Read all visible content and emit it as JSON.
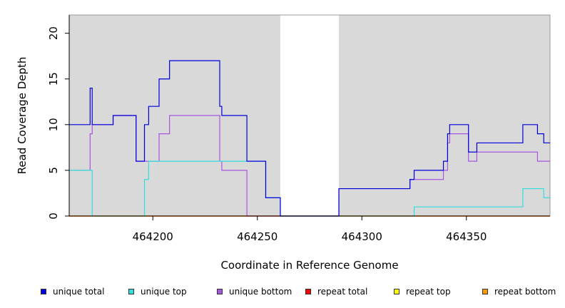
{
  "chart_data": {
    "type": "line",
    "xlabel": "Coordinate in Reference Genome",
    "ylabel": "Read Coverage Depth",
    "xlim": [
      464160,
      464390
    ],
    "ylim": [
      0,
      22
    ],
    "xticks": [
      464200,
      464250,
      464300,
      464350
    ],
    "yticks": [
      0,
      5,
      10,
      15,
      20
    ],
    "gap": [
      464261,
      464289
    ],
    "background": "#d9d9d9",
    "legend_position": "bottom",
    "series": [
      {
        "name": "unique total",
        "color": "#0000dd",
        "points": [
          [
            464160,
            10
          ],
          [
            464170,
            10
          ],
          [
            464170,
            14
          ],
          [
            464171,
            14
          ],
          [
            464171,
            10
          ],
          [
            464181,
            10
          ],
          [
            464181,
            11
          ],
          [
            464192,
            11
          ],
          [
            464192,
            6
          ],
          [
            464196,
            6
          ],
          [
            464196,
            10
          ],
          [
            464198,
            10
          ],
          [
            464198,
            12
          ],
          [
            464203,
            12
          ],
          [
            464203,
            15
          ],
          [
            464208,
            15
          ],
          [
            464208,
            17
          ],
          [
            464232,
            17
          ],
          [
            464232,
            12
          ],
          [
            464233,
            12
          ],
          [
            464233,
            11
          ],
          [
            464245,
            11
          ],
          [
            464245,
            6
          ],
          [
            464254,
            6
          ],
          [
            464254,
            2
          ],
          [
            464261,
            2
          ],
          [
            464261,
            0
          ],
          [
            464289,
            0
          ],
          [
            464289,
            3
          ],
          [
            464323,
            3
          ],
          [
            464323,
            4
          ],
          [
            464325,
            4
          ],
          [
            464325,
            5
          ],
          [
            464339,
            5
          ],
          [
            464339,
            6
          ],
          [
            464341,
            6
          ],
          [
            464341,
            9
          ],
          [
            464342,
            9
          ],
          [
            464342,
            10
          ],
          [
            464351,
            10
          ],
          [
            464351,
            7
          ],
          [
            464355,
            7
          ],
          [
            464355,
            8
          ],
          [
            464377,
            8
          ],
          [
            464377,
            10
          ],
          [
            464384,
            10
          ],
          [
            464384,
            9
          ],
          [
            464387,
            9
          ],
          [
            464387,
            8
          ],
          [
            464390,
            8
          ]
        ]
      },
      {
        "name": "unique top",
        "color": "#33dddd",
        "points": [
          [
            464160,
            5
          ],
          [
            464171,
            5
          ],
          [
            464171,
            0
          ],
          [
            464196,
            0
          ],
          [
            464196,
            4
          ],
          [
            464198,
            4
          ],
          [
            464198,
            6
          ],
          [
            464254,
            6
          ],
          [
            464254,
            2
          ],
          [
            464261,
            2
          ],
          [
            464261,
            0
          ],
          [
            464325,
            0
          ],
          [
            464325,
            1
          ],
          [
            464377,
            1
          ],
          [
            464377,
            3
          ],
          [
            464387,
            3
          ],
          [
            464387,
            2
          ],
          [
            464390,
            2
          ]
        ]
      },
      {
        "name": "unique bottom",
        "color": "#a855e0",
        "points": [
          [
            464160,
            5
          ],
          [
            464170,
            5
          ],
          [
            464170,
            9
          ],
          [
            464171,
            9
          ],
          [
            464171,
            10
          ],
          [
            464181,
            10
          ],
          [
            464181,
            11
          ],
          [
            464192,
            11
          ],
          [
            464192,
            6
          ],
          [
            464203,
            6
          ],
          [
            464203,
            9
          ],
          [
            464208,
            9
          ],
          [
            464208,
            11
          ],
          [
            464232,
            11
          ],
          [
            464232,
            6
          ],
          [
            464233,
            6
          ],
          [
            464233,
            5
          ],
          [
            464245,
            5
          ],
          [
            464245,
            0
          ],
          [
            464289,
            0
          ],
          [
            464289,
            3
          ],
          [
            464323,
            3
          ],
          [
            464323,
            4
          ],
          [
            464339,
            4
          ],
          [
            464339,
            5
          ],
          [
            464341,
            5
          ],
          [
            464341,
            8
          ],
          [
            464342,
            8
          ],
          [
            464342,
            9
          ],
          [
            464351,
            9
          ],
          [
            464351,
            6
          ],
          [
            464355,
            6
          ],
          [
            464355,
            7
          ],
          [
            464384,
            7
          ],
          [
            464384,
            6
          ],
          [
            464390,
            6
          ]
        ]
      },
      {
        "name": "repeat total",
        "color": "#ff0000",
        "points": [
          [
            464160,
            0
          ],
          [
            464390,
            0
          ]
        ]
      },
      {
        "name": "repeat top",
        "color": "#ffff00",
        "points": [
          [
            464160,
            0
          ],
          [
            464390,
            0
          ]
        ]
      },
      {
        "name": "repeat bottom",
        "color": "#ff9900",
        "points": [
          [
            464160,
            0
          ],
          [
            464390,
            0
          ]
        ]
      }
    ]
  }
}
